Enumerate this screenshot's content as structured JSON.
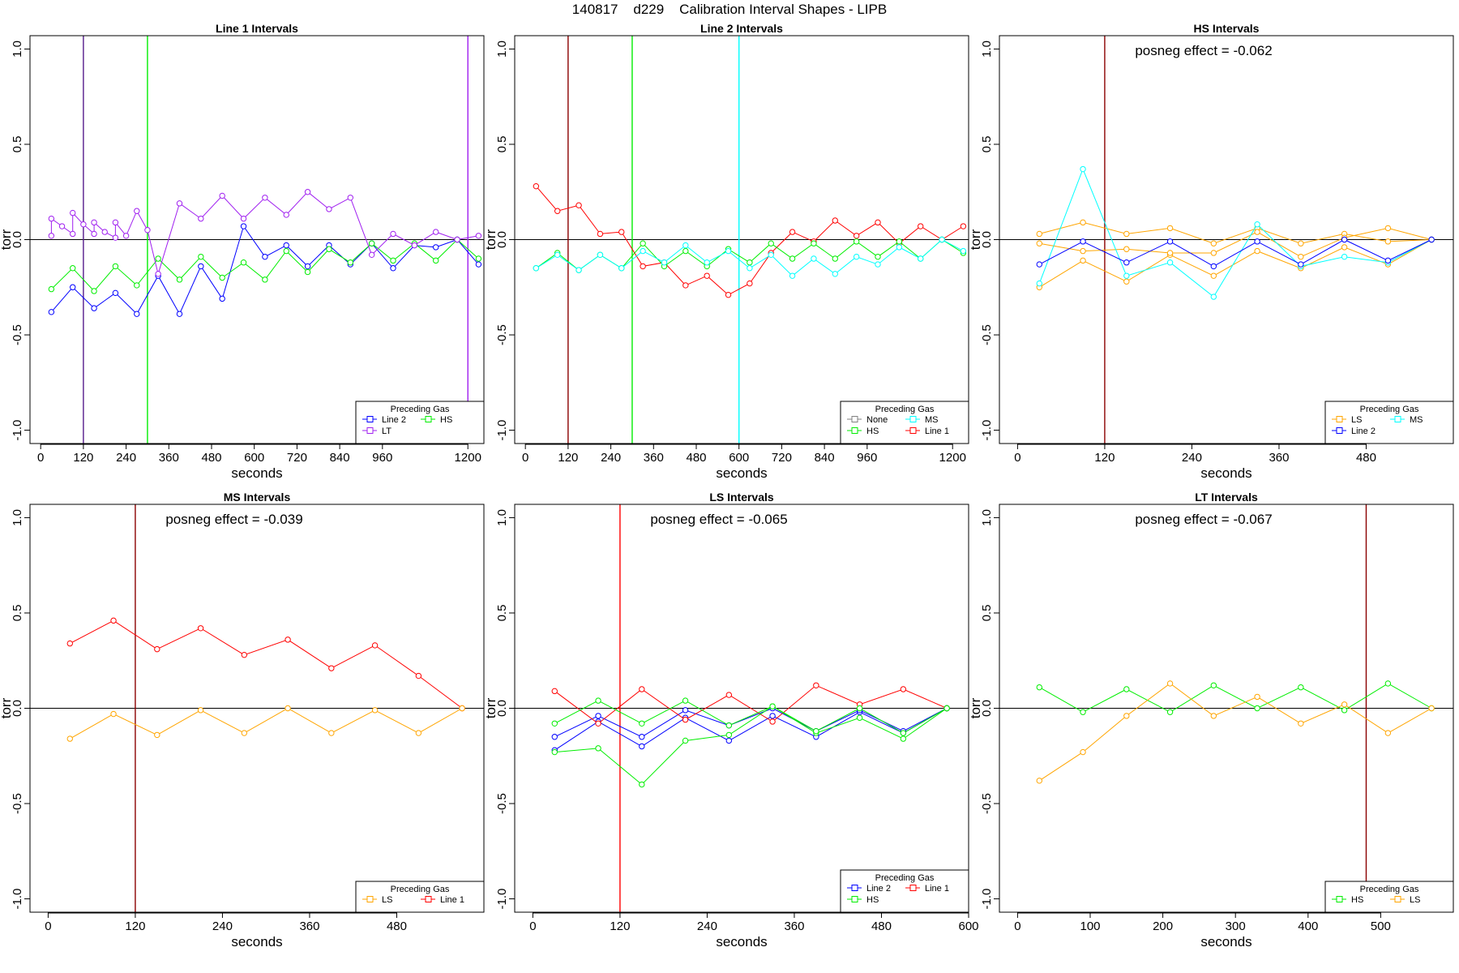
{
  "page_title": "140817    d229    Calibration Interval Shapes - LIPB",
  "colors": {
    "Line 1": "#ff0000",
    "Line 2": "#0000ff",
    "HS": "#00ee00",
    "MS": "#00ffff",
    "LS": "#ffa500",
    "LT": "#a020f0",
    "None": "#808080"
  },
  "chart_data": [
    {
      "type": "line",
      "title": "Line 1 Intervals",
      "xlabel": "seconds",
      "ylabel": "torr",
      "xlim": [
        -30,
        1245
      ],
      "ylim": [
        -1.07,
        1.07
      ],
      "xticks": [
        0,
        120,
        240,
        360,
        480,
        600,
        720,
        840,
        960,
        1200
      ],
      "yticks": [
        -1.0,
        -0.5,
        0.0,
        0.5,
        1.0
      ],
      "ytick_labels": [
        "-1.0",
        "-0.5",
        "0.0",
        "0.5",
        "1.0"
      ],
      "hline": 0,
      "vlines": [
        {
          "x": 120,
          "color": "#551a8b"
        },
        {
          "x": 300,
          "color": "#00ee00"
        },
        {
          "x": 1200,
          "color": "#a020f0"
        }
      ],
      "annotation": "",
      "legend": {
        "title": "Preceding Gas",
        "position": "bottom-right",
        "items": [
          "Line 2",
          "HS",
          "LT"
        ]
      },
      "series": [
        {
          "name": "Line 2",
          "x": [
            30,
            90,
            150,
            210,
            270,
            330,
            390,
            450,
            510,
            570,
            630,
            690,
            750,
            810,
            870,
            930,
            990,
            1050,
            1110,
            1170,
            1230
          ],
          "y": [
            -0.38,
            -0.25,
            -0.36,
            -0.28,
            -0.39,
            -0.19,
            -0.39,
            -0.14,
            -0.31,
            0.07,
            -0.09,
            -0.03,
            -0.14,
            -0.03,
            -0.13,
            -0.02,
            -0.15,
            -0.03,
            -0.04,
            0.0,
            -0.13
          ]
        },
        {
          "name": "HS",
          "x": [
            30,
            90,
            150,
            210,
            270,
            330,
            390,
            450,
            510,
            570,
            630,
            690,
            750,
            810,
            870,
            930,
            990,
            1050,
            1110,
            1170,
            1230
          ],
          "y": [
            -0.26,
            -0.15,
            -0.27,
            -0.14,
            -0.24,
            -0.1,
            -0.21,
            -0.09,
            -0.2,
            -0.12,
            -0.21,
            -0.06,
            -0.17,
            -0.05,
            -0.12,
            -0.02,
            -0.11,
            -0.02,
            -0.11,
            0.0,
            -0.1
          ]
        },
        {
          "name": "LT",
          "x": [
            30,
            30,
            60,
            90,
            90,
            120,
            150,
            150,
            180,
            210,
            210,
            240,
            270,
            300,
            330,
            390,
            450,
            510,
            570,
            630,
            690,
            750,
            810,
            870,
            930,
            990,
            1050,
            1110,
            1170,
            1230
          ],
          "y": [
            0.02,
            0.11,
            0.07,
            0.03,
            0.14,
            0.08,
            0.03,
            0.09,
            0.04,
            0.01,
            0.09,
            0.02,
            0.15,
            0.05,
            -0.18,
            0.19,
            0.11,
            0.23,
            0.11,
            0.22,
            0.13,
            0.25,
            0.16,
            0.22,
            -0.08,
            0.03,
            -0.03,
            0.04,
            0.0,
            0.02
          ]
        }
      ]
    },
    {
      "type": "line",
      "title": "Line 2 Intervals",
      "xlabel": "seconds",
      "ylabel": "torr",
      "xlim": [
        -30,
        1245
      ],
      "ylim": [
        -1.07,
        1.07
      ],
      "xticks": [
        0,
        120,
        240,
        360,
        480,
        600,
        720,
        840,
        960,
        1200
      ],
      "yticks": [
        -1.0,
        -0.5,
        0.0,
        0.5,
        1.0
      ],
      "ytick_labels": [
        "-1.0",
        "-0.5",
        "0.0",
        "0.5",
        "1.0"
      ],
      "hline": 0,
      "vlines": [
        {
          "x": 120,
          "color": "#8b0000"
        },
        {
          "x": 300,
          "color": "#00ee00"
        },
        {
          "x": 600,
          "color": "#00ffff"
        }
      ],
      "annotation": "",
      "legend": {
        "title": "Preceding Gas",
        "position": "bottom-right",
        "items": [
          "None",
          "MS",
          "HS",
          "Line 1"
        ]
      },
      "series": [
        {
          "name": "Line 1",
          "x": [
            30,
            90,
            150,
            210,
            270,
            330,
            390,
            450,
            510,
            570,
            630,
            690,
            750,
            810,
            870,
            930,
            990,
            1050,
            1110,
            1170,
            1230
          ],
          "y": [
            0.28,
            0.15,
            0.18,
            0.03,
            0.04,
            -0.14,
            -0.12,
            -0.24,
            -0.19,
            -0.29,
            -0.23,
            -0.07,
            0.04,
            -0.01,
            0.1,
            0.02,
            0.09,
            -0.02,
            0.07,
            0.0,
            0.07
          ]
        },
        {
          "name": "HS",
          "x": [
            30,
            90,
            150,
            210,
            270,
            330,
            390,
            450,
            510,
            570,
            630,
            690,
            750,
            810,
            870,
            930,
            990,
            1050,
            1110,
            1170,
            1230
          ],
          "y": [
            -0.15,
            -0.07,
            -0.16,
            -0.08,
            -0.15,
            -0.02,
            -0.14,
            -0.06,
            -0.14,
            -0.05,
            -0.12,
            -0.02,
            -0.1,
            -0.02,
            -0.1,
            -0.01,
            -0.09,
            -0.01,
            -0.1,
            0.0,
            -0.07
          ]
        },
        {
          "name": "MS",
          "x": [
            30,
            90,
            150,
            210,
            270,
            330,
            390,
            450,
            510,
            570,
            630,
            690,
            750,
            810,
            870,
            930,
            990,
            1050,
            1110,
            1170,
            1230
          ],
          "y": [
            -0.15,
            -0.08,
            -0.16,
            -0.08,
            -0.15,
            -0.06,
            -0.12,
            -0.03,
            -0.12,
            -0.06,
            -0.15,
            -0.08,
            -0.19,
            -0.1,
            -0.18,
            -0.09,
            -0.13,
            -0.04,
            -0.1,
            0.0,
            -0.06
          ]
        }
      ]
    },
    {
      "type": "line",
      "title": "HS Intervals",
      "xlabel": "seconds",
      "ylabel": "torr",
      "xlim": [
        -25,
        600
      ],
      "ylim": [
        -1.07,
        1.07
      ],
      "xticks": [
        0,
        120,
        240,
        360,
        480
      ],
      "yticks": [
        -1.0,
        -0.5,
        0.0,
        0.5,
        1.0
      ],
      "ytick_labels": [
        "-1.0",
        "-0.5",
        "0.0",
        "0.5",
        "1.0"
      ],
      "hline": 0,
      "vlines": [
        {
          "x": 120,
          "color": "#8b0000"
        }
      ],
      "annotation": "posneg effect = -0.062",
      "legend": {
        "title": "Preceding Gas",
        "position": "bottom-right",
        "items": [
          "LS",
          "MS",
          "Line 2"
        ]
      },
      "series": [
        {
          "name": "LS",
          "x": [
            30,
            90,
            150,
            210,
            270,
            330,
            390,
            450,
            510,
            570
          ],
          "y": [
            -0.25,
            -0.11,
            -0.22,
            -0.08,
            -0.19,
            -0.06,
            -0.15,
            -0.04,
            -0.13,
            0.0
          ]
        },
        {
          "name": "LS",
          "x": [
            30,
            90,
            150,
            210,
            270,
            330,
            390,
            450,
            510,
            570
          ],
          "y": [
            0.03,
            0.09,
            0.03,
            0.06,
            -0.02,
            0.06,
            -0.02,
            0.03,
            -0.01,
            0.0
          ]
        },
        {
          "name": "LS",
          "x": [
            30,
            90,
            150,
            210,
            270,
            330,
            390,
            450,
            510,
            570
          ],
          "y": [
            -0.02,
            -0.06,
            -0.05,
            -0.07,
            -0.07,
            0.04,
            -0.09,
            0.01,
            0.06,
            0.0
          ]
        },
        {
          "name": "MS",
          "x": [
            30,
            90,
            150,
            210,
            270,
            330,
            390,
            450,
            510,
            570
          ],
          "y": [
            -0.23,
            0.37,
            -0.19,
            -0.12,
            -0.3,
            0.08,
            -0.14,
            -0.09,
            -0.12,
            0.0
          ]
        },
        {
          "name": "Line 2",
          "x": [
            30,
            90,
            150,
            210,
            270,
            330,
            390,
            450,
            510,
            570
          ],
          "y": [
            -0.13,
            -0.01,
            -0.12,
            -0.01,
            -0.14,
            -0.01,
            -0.13,
            0.0,
            -0.11,
            0.0
          ]
        }
      ]
    },
    {
      "type": "line",
      "title": "MS Intervals",
      "xlabel": "seconds",
      "ylabel": "torr",
      "xlim": [
        -25,
        600
      ],
      "ylim": [
        -1.07,
        1.07
      ],
      "xticks": [
        0,
        120,
        240,
        360,
        480
      ],
      "yticks": [
        -1.0,
        -0.5,
        0.0,
        0.5,
        1.0
      ],
      "ytick_labels": [
        "-1.0",
        "-0.5",
        "0.0",
        "0.5",
        "1.0"
      ],
      "hline": 0,
      "vlines": [
        {
          "x": 120,
          "color": "#8b0000"
        }
      ],
      "annotation": "posneg effect = -0.039",
      "legend": {
        "title": "Preceding Gas",
        "position": "bottom-right",
        "items": [
          "LS",
          "Line 1"
        ]
      },
      "series": [
        {
          "name": "Line 1",
          "x": [
            30,
            90,
            150,
            210,
            270,
            330,
            390,
            450,
            510,
            570
          ],
          "y": [
            0.34,
            0.46,
            0.31,
            0.42,
            0.28,
            0.36,
            0.21,
            0.33,
            0.17,
            0.0
          ]
        },
        {
          "name": "LS",
          "x": [
            30,
            90,
            150,
            210,
            270,
            330,
            390,
            450,
            510,
            570
          ],
          "y": [
            -0.16,
            -0.03,
            -0.14,
            -0.01,
            -0.13,
            0.0,
            -0.13,
            -0.01,
            -0.13,
            0.0
          ]
        }
      ]
    },
    {
      "type": "line",
      "title": "LS Intervals",
      "xlabel": "seconds",
      "ylabel": "torr",
      "xlim": [
        -25,
        600
      ],
      "ylim": [
        -1.07,
        1.07
      ],
      "xticks": [
        0,
        120,
        240,
        360,
        480,
        600
      ],
      "yticks": [
        -1.0,
        -0.5,
        0.0,
        0.5,
        1.0
      ],
      "ytick_labels": [
        "-1.0",
        "-0.5",
        "0.0",
        "0.5",
        "1.0"
      ],
      "hline": 0,
      "vlines": [
        {
          "x": 120,
          "color": "#ff0000"
        }
      ],
      "annotation": "posneg effect = -0.065",
      "legend": {
        "title": "Preceding Gas",
        "position": "bottom-right",
        "items": [
          "Line 2",
          "Line 1",
          "HS"
        ]
      },
      "series": [
        {
          "name": "Line 2",
          "x": [
            30,
            90,
            150,
            210,
            270,
            330,
            390,
            450,
            510,
            570
          ],
          "y": [
            -0.22,
            -0.07,
            -0.2,
            -0.05,
            -0.17,
            -0.04,
            -0.15,
            -0.02,
            -0.13,
            0.0
          ]
        },
        {
          "name": "Line 2",
          "x": [
            30,
            90,
            150,
            210,
            270,
            330,
            390,
            450,
            510,
            570
          ],
          "y": [
            -0.15,
            -0.04,
            -0.15,
            -0.01,
            -0.09,
            0.0,
            -0.12,
            -0.01,
            -0.12,
            0.0
          ]
        },
        {
          "name": "Line 1",
          "x": [
            30,
            90,
            150,
            210,
            270,
            330,
            390,
            450,
            510,
            570
          ],
          "y": [
            0.09,
            -0.08,
            0.1,
            -0.06,
            0.07,
            -0.07,
            0.12,
            0.02,
            0.1,
            0.0
          ]
        },
        {
          "name": "HS",
          "x": [
            30,
            90,
            150,
            210,
            270,
            330,
            390,
            450,
            510,
            570
          ],
          "y": [
            -0.23,
            -0.21,
            -0.4,
            -0.17,
            -0.14,
            0.01,
            -0.13,
            -0.05,
            -0.16,
            0.0
          ]
        },
        {
          "name": "HS",
          "x": [
            30,
            90,
            150,
            210,
            270,
            330,
            390,
            450,
            510,
            570
          ],
          "y": [
            -0.08,
            0.04,
            -0.08,
            0.04,
            -0.09,
            0.01,
            -0.12,
            0.0,
            -0.13,
            0.0
          ]
        }
      ]
    },
    {
      "type": "line",
      "title": "LT Intervals",
      "xlabel": "seconds",
      "ylabel": "torr",
      "xlim": [
        -25,
        600
      ],
      "ylim": [
        -1.07,
        1.07
      ],
      "xticks": [
        0,
        100,
        200,
        300,
        400,
        500
      ],
      "yticks": [
        -1.0,
        -0.5,
        0.0,
        0.5,
        1.0
      ],
      "ytick_labels": [
        "-1.0",
        "-0.5",
        "0.0",
        "0.5",
        "1.0"
      ],
      "hline": 0,
      "vlines": [
        {
          "x": 480,
          "color": "#8b0000"
        }
      ],
      "annotation": "posneg effect = -0.067",
      "legend": {
        "title": "Preceding Gas",
        "position": "bottom-right",
        "items": [
          "HS",
          "LS"
        ]
      },
      "series": [
        {
          "name": "HS",
          "x": [
            30,
            90,
            150,
            210,
            270,
            330,
            390,
            450,
            510,
            570
          ],
          "y": [
            0.11,
            -0.02,
            0.1,
            -0.02,
            0.12,
            0.0,
            0.11,
            -0.01,
            0.13,
            0.0
          ]
        },
        {
          "name": "LS",
          "x": [
            30,
            90,
            150,
            210,
            270,
            330,
            390,
            450,
            510,
            570
          ],
          "y": [
            -0.38,
            -0.23,
            -0.04,
            0.13,
            -0.04,
            0.06,
            -0.08,
            0.02,
            -0.13,
            0.0
          ]
        }
      ]
    }
  ]
}
